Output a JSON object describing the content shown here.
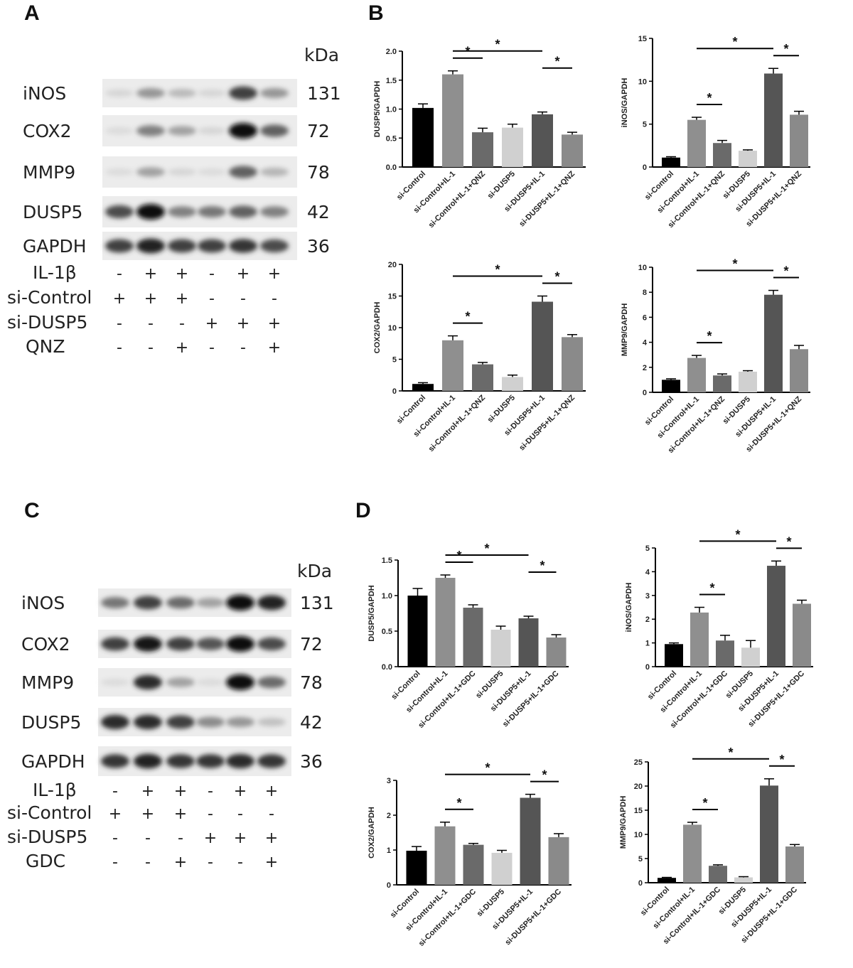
{
  "panels": {
    "A": "A",
    "B": "B",
    "C": "C",
    "D": "D"
  },
  "blots": [
    {
      "id": "A",
      "kda_label": "kDa",
      "rows": [
        {
          "protein": "iNOS",
          "kda": "131",
          "intensity": [
            0.05,
            0.35,
            0.18,
            0.05,
            0.75,
            0.35
          ]
        },
        {
          "protein": "COX2",
          "kda": "72",
          "intensity": [
            0.03,
            0.45,
            0.3,
            0.05,
            1.0,
            0.6
          ]
        },
        {
          "protein": "MMP9",
          "kda": "78",
          "intensity": [
            0.03,
            0.3,
            0.05,
            0.03,
            0.6,
            0.2
          ]
        },
        {
          "protein": "DUSP5",
          "kda": "42",
          "intensity": [
            0.7,
            1.0,
            0.45,
            0.5,
            0.6,
            0.45
          ]
        },
        {
          "protein": "GAPDH",
          "kda": "36",
          "intensity": [
            0.75,
            0.9,
            0.75,
            0.75,
            0.8,
            0.7
          ]
        }
      ],
      "conditions": [
        {
          "name": "IL-1β",
          "signs": [
            "-",
            "+",
            "+",
            "-",
            "+",
            "+"
          ]
        },
        {
          "name": "si-Control",
          "signs": [
            "+",
            "+",
            "+",
            "-",
            "-",
            "-"
          ]
        },
        {
          "name": "si-DUSP5",
          "signs": [
            "-",
            "-",
            "-",
            "+",
            "+",
            "+"
          ]
        },
        {
          "name": "QNZ",
          "signs": [
            "-",
            "-",
            "+",
            "-",
            "-",
            "+"
          ]
        }
      ]
    },
    {
      "id": "C",
      "kda_label": "kDa",
      "rows": [
        {
          "protein": "iNOS",
          "kda": "131",
          "intensity": [
            0.5,
            0.75,
            0.55,
            0.3,
            1.0,
            0.9
          ]
        },
        {
          "protein": "COX2",
          "kda": "72",
          "intensity": [
            0.75,
            0.95,
            0.75,
            0.65,
            1.0,
            0.7
          ]
        },
        {
          "protein": "MMP9",
          "kda": "78",
          "intensity": [
            0.03,
            0.85,
            0.3,
            0.03,
            1.0,
            0.55
          ]
        },
        {
          "protein": "DUSP5",
          "kda": "42",
          "intensity": [
            0.85,
            0.85,
            0.75,
            0.4,
            0.35,
            0.15
          ]
        },
        {
          "protein": "GAPDH",
          "kda": "36",
          "intensity": [
            0.8,
            0.9,
            0.8,
            0.8,
            0.85,
            0.8
          ]
        }
      ],
      "conditions": [
        {
          "name": "IL-1β",
          "signs": [
            "-",
            "+",
            "+",
            "-",
            "+",
            "+"
          ]
        },
        {
          "name": "si-Control",
          "signs": [
            "+",
            "+",
            "+",
            "-",
            "-",
            "-"
          ]
        },
        {
          "name": "si-DUSP5",
          "signs": [
            "-",
            "-",
            "-",
            "+",
            "+",
            "+"
          ]
        },
        {
          "name": "GDC",
          "signs": [
            "-",
            "-",
            "+",
            "-",
            "-",
            "+"
          ]
        }
      ]
    }
  ],
  "colors": {
    "bars": [
      "#000000",
      "#8f8f8f",
      "#6a6a6a",
      "#d0d0d0",
      "#555555",
      "#8a8a8a"
    ],
    "axis": "#000000"
  },
  "chart_data": [
    {
      "type": "bar",
      "panel": "B",
      "ylabel": "DUSP5/GAPDH",
      "ylim": [
        0,
        2.0
      ],
      "yticks": [
        "0.0",
        "0.5",
        "1.0",
        "1.5",
        "2.0"
      ],
      "categories": [
        "si-Control",
        "si-Control+IL-1",
        "si-Control+IL-1+QNZ",
        "si-DUSP5",
        "si-DUSP5+IL-1",
        "si-DUSP5+IL-1+QNZ"
      ],
      "values": [
        1.02,
        1.6,
        0.6,
        0.68,
        0.91,
        0.56
      ],
      "errors": [
        0.07,
        0.06,
        0.07,
        0.06,
        0.04,
        0.04
      ],
      "sig": [
        {
          "from": 2,
          "to": 5,
          "label": "*"
        },
        {
          "from": 2,
          "to": 3,
          "label": "*"
        },
        {
          "from": 5,
          "to": 6,
          "label": "*"
        }
      ]
    },
    {
      "type": "bar",
      "panel": "B",
      "ylabel": "iNOS/GAPDH",
      "ylim": [
        0,
        15
      ],
      "yticks": [
        "0",
        "5",
        "10",
        "15"
      ],
      "categories": [
        "si-Control",
        "si-Control+IL-1",
        "si-Control+IL-1+QNZ",
        "si-DUSP5",
        "si-DUSP5+IL-1",
        "si-DUSP5+IL-1+QNZ"
      ],
      "values": [
        1.1,
        5.5,
        2.8,
        1.9,
        10.9,
        6.1
      ],
      "errors": [
        0.1,
        0.3,
        0.3,
        0.1,
        0.6,
        0.4
      ],
      "sig": [
        {
          "from": 2,
          "to": 5,
          "label": "*"
        },
        {
          "from": 2,
          "to": 3,
          "label": "*"
        },
        {
          "from": 5,
          "to": 6,
          "label": "*"
        }
      ]
    },
    {
      "type": "bar",
      "panel": "B",
      "ylabel": "COX2/GAPDH",
      "ylim": [
        0,
        20
      ],
      "yticks": [
        "0",
        "5",
        "10",
        "15",
        "20"
      ],
      "categories": [
        "si-Control",
        "si-Control+IL-1",
        "si-Control+IL-1+QNZ",
        "si-DUSP5",
        "si-DUSP5+IL-1",
        "si-DUSP5+IL-1+QNZ"
      ],
      "values": [
        1.1,
        8.0,
        4.2,
        2.2,
        14.1,
        8.5
      ],
      "errors": [
        0.2,
        0.7,
        0.3,
        0.3,
        0.9,
        0.4
      ],
      "sig": [
        {
          "from": 2,
          "to": 5,
          "label": "*"
        },
        {
          "from": 2,
          "to": 3,
          "label": "*"
        },
        {
          "from": 5,
          "to": 6,
          "label": "*"
        }
      ]
    },
    {
      "type": "bar",
      "panel": "B",
      "ylabel": "MMP9/GAPDH",
      "ylim": [
        0,
        10
      ],
      "yticks": [
        "0",
        "2",
        "4",
        "6",
        "8",
        "10"
      ],
      "categories": [
        "si-Control",
        "si-Control+IL-1",
        "si-Control+IL-1+QNZ",
        "si-DUSP5",
        "si-DUSP5+IL-1",
        "si-DUSP5+IL-1+QNZ"
      ],
      "values": [
        1.0,
        2.75,
        1.35,
        1.65,
        7.8,
        3.45
      ],
      "errors": [
        0.08,
        0.2,
        0.12,
        0.08,
        0.35,
        0.3
      ],
      "sig": [
        {
          "from": 2,
          "to": 5,
          "label": "*"
        },
        {
          "from": 2,
          "to": 3,
          "label": "*"
        },
        {
          "from": 5,
          "to": 6,
          "label": "*"
        }
      ]
    },
    {
      "type": "bar",
      "panel": "D",
      "ylabel": "DUSP5/GAPDH",
      "ylim": [
        0,
        1.5
      ],
      "yticks": [
        "0.0",
        "0.5",
        "1.0",
        "1.5"
      ],
      "categories": [
        "si-Control",
        "si-Control+IL-1",
        "si-Control+IL-1+GDC",
        "si-DUSP5",
        "si-DUSP5+IL-1",
        "si-DUSP5+IL-1+GDC"
      ],
      "values": [
        1.0,
        1.25,
        0.83,
        0.52,
        0.68,
        0.41
      ],
      "errors": [
        0.1,
        0.04,
        0.04,
        0.05,
        0.03,
        0.04
      ],
      "sig": [
        {
          "from": 2,
          "to": 5,
          "label": "*"
        },
        {
          "from": 2,
          "to": 3,
          "label": "*"
        },
        {
          "from": 5,
          "to": 6,
          "label": "*"
        }
      ]
    },
    {
      "type": "bar",
      "panel": "D",
      "ylabel": "iNOS/GAPDH",
      "ylim": [
        0,
        5
      ],
      "yticks": [
        "0",
        "1",
        "2",
        "3",
        "4",
        "5"
      ],
      "categories": [
        "si-Control",
        "si-Control+IL-1",
        "si-Control+IL-1+GDC",
        "si-DUSP5",
        "si-DUSP5+IL-1",
        "si-DUSP5+IL-1+GDC"
      ],
      "values": [
        0.95,
        2.28,
        1.1,
        0.8,
        4.25,
        2.65
      ],
      "errors": [
        0.05,
        0.22,
        0.22,
        0.3,
        0.2,
        0.15
      ],
      "sig": [
        {
          "from": 2,
          "to": 5,
          "label": "*"
        },
        {
          "from": 2,
          "to": 3,
          "label": "*"
        },
        {
          "from": 5,
          "to": 6,
          "label": "*"
        }
      ]
    },
    {
      "type": "bar",
      "panel": "D",
      "ylabel": "COX2/GAPDH",
      "ylim": [
        0,
        3
      ],
      "yticks": [
        "0",
        "1",
        "2",
        "3"
      ],
      "categories": [
        "si-Control",
        "si-Control+IL-1",
        "si-Control+IL-1+GDC",
        "si-DUSP5",
        "si-DUSP5+IL-1",
        "si-DUSP5+IL-1+GDC"
      ],
      "values": [
        0.98,
        1.68,
        1.15,
        0.92,
        2.5,
        1.37
      ],
      "errors": [
        0.12,
        0.12,
        0.04,
        0.07,
        0.1,
        0.1
      ],
      "sig": [
        {
          "from": 2,
          "to": 5,
          "label": "*"
        },
        {
          "from": 2,
          "to": 3,
          "label": "*"
        },
        {
          "from": 5,
          "to": 6,
          "label": "*"
        }
      ]
    },
    {
      "type": "bar",
      "panel": "D",
      "ylabel": "MMP9/GAPDH",
      "ylim": [
        0,
        25
      ],
      "yticks": [
        "0",
        "5",
        "10",
        "15",
        "20",
        "25"
      ],
      "categories": [
        "si-Control",
        "si-Control+IL-1",
        "si-Control+IL-1+GDC",
        "si-DUSP5",
        "si-DUSP5+IL-1",
        "si-DUSP5+IL-1+GDC"
      ],
      "values": [
        1.0,
        12.0,
        3.5,
        1.1,
        20.1,
        7.5
      ],
      "errors": [
        0.1,
        0.5,
        0.2,
        0.15,
        1.4,
        0.4
      ],
      "sig": [
        {
          "from": 2,
          "to": 5,
          "label": "*"
        },
        {
          "from": 2,
          "to": 3,
          "label": "*"
        },
        {
          "from": 5,
          "to": 6,
          "label": "*"
        }
      ]
    }
  ]
}
